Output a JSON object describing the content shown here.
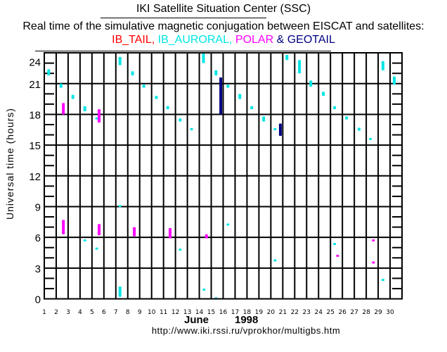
{
  "header": {
    "title": "IKI Satellite Situation Center (SSC)",
    "subtitle": "Real time of the simulative magnetic conjugation between EISCAT and satellites:",
    "legend": [
      {
        "name": "IB_TAIL",
        "text": "IB_TAIL,",
        "color": "#ff0000"
      },
      {
        "name": "IB_AURORAL",
        "text": " IB_AURORAL,",
        "color": "#00e5e5"
      },
      {
        "name": "POLAR",
        "text": " POLAR",
        "color": "#ff00ff"
      },
      {
        "name": "GEOTAIL",
        "text": " & GEOTAIL",
        "color": "#000080"
      }
    ]
  },
  "footer": {
    "month": "June",
    "year": "1998",
    "url": "http://www.iki.rssi.ru/vprokhor/multigbs.htm"
  },
  "chart_data": {
    "type": "scatter",
    "title": "Real time of the simulative magnetic conjugation between EISCAT and satellites",
    "xlabel": "June 1998",
    "ylabel": "Universal time (hours)",
    "xlim": [
      1,
      31
    ],
    "ylim": [
      0,
      24
    ],
    "grid": true,
    "x_ticks": [
      "1",
      "2",
      "3",
      "4",
      "5",
      "6",
      "7",
      "8",
      "9",
      "10",
      "11",
      "12",
      "13",
      "14",
      "15",
      "16",
      "17",
      "18",
      "19",
      "20",
      "21",
      "22",
      "23",
      "24",
      "25",
      "26",
      "27",
      "28",
      "29",
      "30"
    ],
    "y_ticks": [
      "0",
      "3",
      "6",
      "9",
      "12",
      "15",
      "18",
      "21",
      "24"
    ],
    "legend_position": "top",
    "series": [
      {
        "name": "IB_TAIL",
        "color": "#ff0000",
        "segments": []
      },
      {
        "name": "IB_AURORAL",
        "color": "#00e5e5",
        "segments": [
          {
            "day": 1.37,
            "from": 21.8,
            "to": 22.4
          },
          {
            "day": 2.4,
            "from": 20.6,
            "to": 21.0
          },
          {
            "day": 3.4,
            "from": 19.5,
            "to": 19.9
          },
          {
            "day": 4.4,
            "from": 18.3,
            "to": 18.8
          },
          {
            "day": 5.4,
            "from": 17.5,
            "to": 17.6
          },
          {
            "day": 7.35,
            "from": 22.8,
            "to": 23.6
          },
          {
            "day": 8.4,
            "from": 21.8,
            "to": 22.2
          },
          {
            "day": 9.35,
            "from": 20.6,
            "to": 20.9
          },
          {
            "day": 10.4,
            "from": 19.5,
            "to": 19.8
          },
          {
            "day": 11.35,
            "from": 18.5,
            "to": 18.8
          },
          {
            "day": 12.4,
            "from": 17.3,
            "to": 17.6
          },
          {
            "day": 13.35,
            "from": 16.45,
            "to": 16.55
          },
          {
            "day": 14.35,
            "from": 23.0,
            "to": 24.0
          },
          {
            "day": 15.4,
            "from": 21.8,
            "to": 22.3
          },
          {
            "day": 16.4,
            "from": 20.6,
            "to": 20.9
          },
          {
            "day": 17.4,
            "from": 19.5,
            "to": 20.0
          },
          {
            "day": 18.4,
            "from": 18.5,
            "to": 18.8
          },
          {
            "day": 19.4,
            "from": 17.3,
            "to": 17.8
          },
          {
            "day": 20.35,
            "from": 16.45,
            "to": 16.55
          },
          {
            "day": 21.35,
            "from": 23.3,
            "to": 23.8
          },
          {
            "day": 22.4,
            "from": 22.0,
            "to": 23.3
          },
          {
            "day": 23.35,
            "from": 20.7,
            "to": 21.3
          },
          {
            "day": 24.4,
            "from": 19.8,
            "to": 20.2
          },
          {
            "day": 25.35,
            "from": 18.5,
            "to": 18.8
          },
          {
            "day": 26.35,
            "from": 17.5,
            "to": 17.8
          },
          {
            "day": 27.4,
            "from": 16.4,
            "to": 16.7
          },
          {
            "day": 28.35,
            "from": 15.5,
            "to": 15.6
          },
          {
            "day": 29.4,
            "from": 22.3,
            "to": 23.2
          },
          {
            "day": 30.35,
            "from": 20.9,
            "to": 21.7
          },
          {
            "day": 7.35,
            "from": 8.95,
            "to": 9.05
          },
          {
            "day": 4.4,
            "from": 5.6,
            "to": 5.7
          },
          {
            "day": 5.4,
            "from": 4.8,
            "to": 4.9
          },
          {
            "day": 7.35,
            "from": 0.2,
            "to": 1.2
          },
          {
            "day": 12.4,
            "from": 4.7,
            "to": 4.8
          },
          {
            "day": 14.4,
            "from": 0.7,
            "to": 0.9
          },
          {
            "day": 15.4,
            "from": 0.0,
            "to": 0.05
          },
          {
            "day": 16.4,
            "from": 7.15,
            "to": 7.25
          },
          {
            "day": 20.35,
            "from": 3.65,
            "to": 3.75
          },
          {
            "day": 25.35,
            "from": 5.25,
            "to": 5.35
          },
          {
            "day": 29.4,
            "from": 1.75,
            "to": 1.85
          }
        ]
      },
      {
        "name": "POLAR",
        "color": "#ff00ff",
        "segments": [
          {
            "day": 2.6,
            "from": 18.0,
            "to": 19.1
          },
          {
            "day": 5.6,
            "from": 17.2,
            "to": 18.5
          },
          {
            "day": 2.6,
            "from": 6.3,
            "to": 7.7
          },
          {
            "day": 5.6,
            "from": 6.2,
            "to": 7.3
          },
          {
            "day": 8.55,
            "from": 6.1,
            "to": 7.0
          },
          {
            "day": 11.55,
            "from": 5.9,
            "to": 6.9
          },
          {
            "day": 14.6,
            "from": 5.9,
            "to": 6.3
          },
          {
            "day": 25.6,
            "from": 4.1,
            "to": 4.2
          },
          {
            "day": 28.6,
            "from": 5.6,
            "to": 5.7
          },
          {
            "day": 28.6,
            "from": 3.45,
            "to": 3.55
          }
        ]
      },
      {
        "name": "GEOTAIL",
        "color": "#000080",
        "segments": [
          {
            "day": 15.8,
            "from": 18.0,
            "to": 21.6
          },
          {
            "day": 20.8,
            "from": 15.9,
            "to": 17.1
          }
        ]
      }
    ]
  }
}
